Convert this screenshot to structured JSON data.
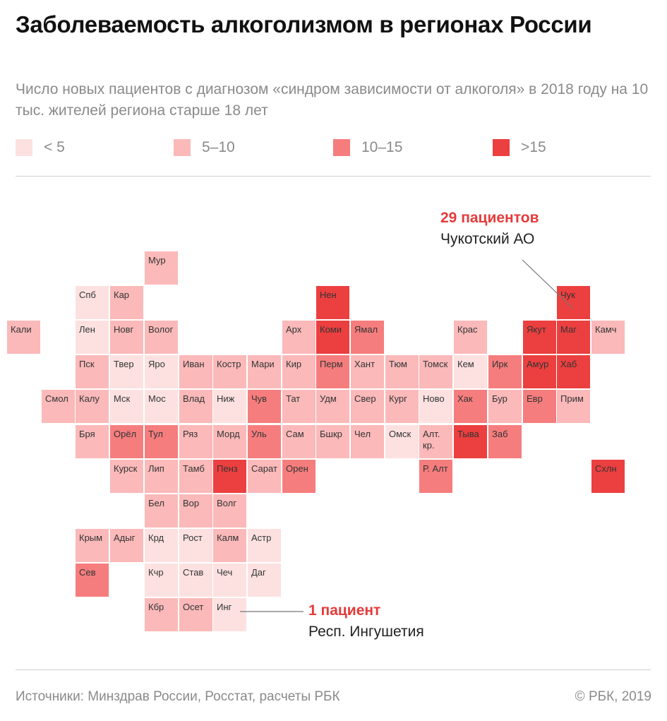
{
  "title": "Заболеваемость алкоголизмом в регионах России",
  "subtitle": "Число новых пациентов с диагнозом «синдром зависимости от алкоголя» в 2018 году на 10 тыс. жителей региона старше 18 лет",
  "colors": {
    "bin_0": "#fde1e1",
    "bin_1": "#fbb9b9",
    "bin_2": "#f67d7d",
    "bin_3": "#ec3f3f",
    "callout": "#e53b3b"
  },
  "legend": [
    {
      "label": "< 5",
      "bin": 0
    },
    {
      "label": "5–10",
      "bin": 1
    },
    {
      "label": "10–15",
      "bin": 2
    },
    {
      "label": ">15",
      "bin": 3
    }
  ],
  "regions": [
    {
      "label": "Мур",
      "col": 4,
      "row": 0,
      "bin": 1
    },
    {
      "label": "Спб",
      "col": 2,
      "row": 1,
      "bin": 0
    },
    {
      "label": "Кар",
      "col": 3,
      "row": 1,
      "bin": 1
    },
    {
      "label": "Нен",
      "col": 9,
      "row": 1,
      "bin": 3
    },
    {
      "label": "Чук",
      "col": 16,
      "row": 1,
      "bin": 3
    },
    {
      "label": "Кали",
      "col": 0,
      "row": 2,
      "bin": 1
    },
    {
      "label": "Лен",
      "col": 2,
      "row": 2,
      "bin": 0
    },
    {
      "label": "Новг",
      "col": 3,
      "row": 2,
      "bin": 1
    },
    {
      "label": "Волог",
      "col": 4,
      "row": 2,
      "bin": 1
    },
    {
      "label": "Арх",
      "col": 8,
      "row": 2,
      "bin": 1
    },
    {
      "label": "Коми",
      "col": 9,
      "row": 2,
      "bin": 3
    },
    {
      "label": "Ямал",
      "col": 10,
      "row": 2,
      "bin": 2
    },
    {
      "label": "Крас",
      "col": 13,
      "row": 2,
      "bin": 1
    },
    {
      "label": "Якут",
      "col": 15,
      "row": 2,
      "bin": 3
    },
    {
      "label": "Маг",
      "col": 16,
      "row": 2,
      "bin": 3
    },
    {
      "label": "Камч",
      "col": 17,
      "row": 2,
      "bin": 1
    },
    {
      "label": "Пск",
      "col": 2,
      "row": 3,
      "bin": 1
    },
    {
      "label": "Твер",
      "col": 3,
      "row": 3,
      "bin": 0
    },
    {
      "label": "Яро",
      "col": 4,
      "row": 3,
      "bin": 0
    },
    {
      "label": "Иван",
      "col": 5,
      "row": 3,
      "bin": 1
    },
    {
      "label": "Костр",
      "col": 6,
      "row": 3,
      "bin": 1
    },
    {
      "label": "Мари",
      "col": 7,
      "row": 3,
      "bin": 1
    },
    {
      "label": "Кир",
      "col": 8,
      "row": 3,
      "bin": 1
    },
    {
      "label": "Перм",
      "col": 9,
      "row": 3,
      "bin": 2
    },
    {
      "label": "Хант",
      "col": 10,
      "row": 3,
      "bin": 1
    },
    {
      "label": "Тюм",
      "col": 11,
      "row": 3,
      "bin": 1
    },
    {
      "label": "Томск",
      "col": 12,
      "row": 3,
      "bin": 1
    },
    {
      "label": "Кем",
      "col": 13,
      "row": 3,
      "bin": 0
    },
    {
      "label": "Ирк",
      "col": 14,
      "row": 3,
      "bin": 2
    },
    {
      "label": "Амур",
      "col": 15,
      "row": 3,
      "bin": 3
    },
    {
      "label": "Хаб",
      "col": 16,
      "row": 3,
      "bin": 3
    },
    {
      "label": "Смол",
      "col": 1,
      "row": 4,
      "bin": 1
    },
    {
      "label": "Калу",
      "col": 2,
      "row": 4,
      "bin": 1
    },
    {
      "label": "Мск",
      "col": 3,
      "row": 4,
      "bin": 0
    },
    {
      "label": "Мос",
      "col": 4,
      "row": 4,
      "bin": 0
    },
    {
      "label": "Влад",
      "col": 5,
      "row": 4,
      "bin": 1
    },
    {
      "label": "Ниж",
      "col": 6,
      "row": 4,
      "bin": 0
    },
    {
      "label": "Чув",
      "col": 7,
      "row": 4,
      "bin": 2
    },
    {
      "label": "Тат",
      "col": 8,
      "row": 4,
      "bin": 1
    },
    {
      "label": "Удм",
      "col": 9,
      "row": 4,
      "bin": 1
    },
    {
      "label": "Свер",
      "col": 10,
      "row": 4,
      "bin": 1
    },
    {
      "label": "Кург",
      "col": 11,
      "row": 4,
      "bin": 1
    },
    {
      "label": "Ново",
      "col": 12,
      "row": 4,
      "bin": 0
    },
    {
      "label": "Хак",
      "col": 13,
      "row": 4,
      "bin": 2
    },
    {
      "label": "Бур",
      "col": 14,
      "row": 4,
      "bin": 1
    },
    {
      "label": "Евр",
      "col": 15,
      "row": 4,
      "bin": 2
    },
    {
      "label": "Прим",
      "col": 16,
      "row": 4,
      "bin": 1
    },
    {
      "label": "Бря",
      "col": 2,
      "row": 5,
      "bin": 1
    },
    {
      "label": "Орёл",
      "col": 3,
      "row": 5,
      "bin": 2
    },
    {
      "label": "Тул",
      "col": 4,
      "row": 5,
      "bin": 2
    },
    {
      "label": "Ряз",
      "col": 5,
      "row": 5,
      "bin": 1
    },
    {
      "label": "Морд",
      "col": 6,
      "row": 5,
      "bin": 1
    },
    {
      "label": "Уль",
      "col": 7,
      "row": 5,
      "bin": 2
    },
    {
      "label": "Сам",
      "col": 8,
      "row": 5,
      "bin": 1
    },
    {
      "label": "Бшкр",
      "col": 9,
      "row": 5,
      "bin": 1
    },
    {
      "label": "Чел",
      "col": 10,
      "row": 5,
      "bin": 1
    },
    {
      "label": "Омск",
      "col": 11,
      "row": 5,
      "bin": 0
    },
    {
      "label": "Алт. кр.",
      "col": 12,
      "row": 5,
      "bin": 1
    },
    {
      "label": "Тыва",
      "col": 13,
      "row": 5,
      "bin": 3
    },
    {
      "label": "Заб",
      "col": 14,
      "row": 5,
      "bin": 2
    },
    {
      "label": "Курск",
      "col": 3,
      "row": 6,
      "bin": 1
    },
    {
      "label": "Лип",
      "col": 4,
      "row": 6,
      "bin": 1
    },
    {
      "label": "Тамб",
      "col": 5,
      "row": 6,
      "bin": 1
    },
    {
      "label": "Пенз",
      "col": 6,
      "row": 6,
      "bin": 3
    },
    {
      "label": "Сарат",
      "col": 7,
      "row": 6,
      "bin": 1
    },
    {
      "label": "Орен",
      "col": 8,
      "row": 6,
      "bin": 2
    },
    {
      "label": "Р. Алт",
      "col": 12,
      "row": 6,
      "bin": 2
    },
    {
      "label": "Схлн",
      "col": 17,
      "row": 6,
      "bin": 3
    },
    {
      "label": "Бел",
      "col": 4,
      "row": 7,
      "bin": 1
    },
    {
      "label": "Вор",
      "col": 5,
      "row": 7,
      "bin": 1
    },
    {
      "label": "Волг",
      "col": 6,
      "row": 7,
      "bin": 1
    },
    {
      "label": "Крым",
      "col": 2,
      "row": 8,
      "bin": 1
    },
    {
      "label": "Адыг",
      "col": 3,
      "row": 8,
      "bin": 1
    },
    {
      "label": "Крд",
      "col": 4,
      "row": 8,
      "bin": 0
    },
    {
      "label": "Рост",
      "col": 5,
      "row": 8,
      "bin": 0
    },
    {
      "label": "Калм",
      "col": 6,
      "row": 8,
      "bin": 1
    },
    {
      "label": "Астр",
      "col": 7,
      "row": 8,
      "bin": 0
    },
    {
      "label": "Сев",
      "col": 2,
      "row": 9,
      "bin": 2
    },
    {
      "label": "Кчр",
      "col": 4,
      "row": 9,
      "bin": 0
    },
    {
      "label": "Став",
      "col": 5,
      "row": 9,
      "bin": 0
    },
    {
      "label": "Чеч",
      "col": 6,
      "row": 9,
      "bin": 0
    },
    {
      "label": "Даг",
      "col": 7,
      "row": 9,
      "bin": 0
    },
    {
      "label": "Кбр",
      "col": 4,
      "row": 10,
      "bin": 1
    },
    {
      "label": "Осет",
      "col": 5,
      "row": 10,
      "bin": 1
    },
    {
      "label": "Инг",
      "col": 6,
      "row": 10,
      "bin": 0
    }
  ],
  "callouts": {
    "max": {
      "value": "29 пациентов",
      "name": "Чукотский АО"
    },
    "min": {
      "value": "1 пациент",
      "name": "Респ. Ингушетия"
    }
  },
  "footer": {
    "sources": "Источники: Минздрав России, Росстат, расчеты РБК",
    "copyright": "© РБК, 2019"
  }
}
